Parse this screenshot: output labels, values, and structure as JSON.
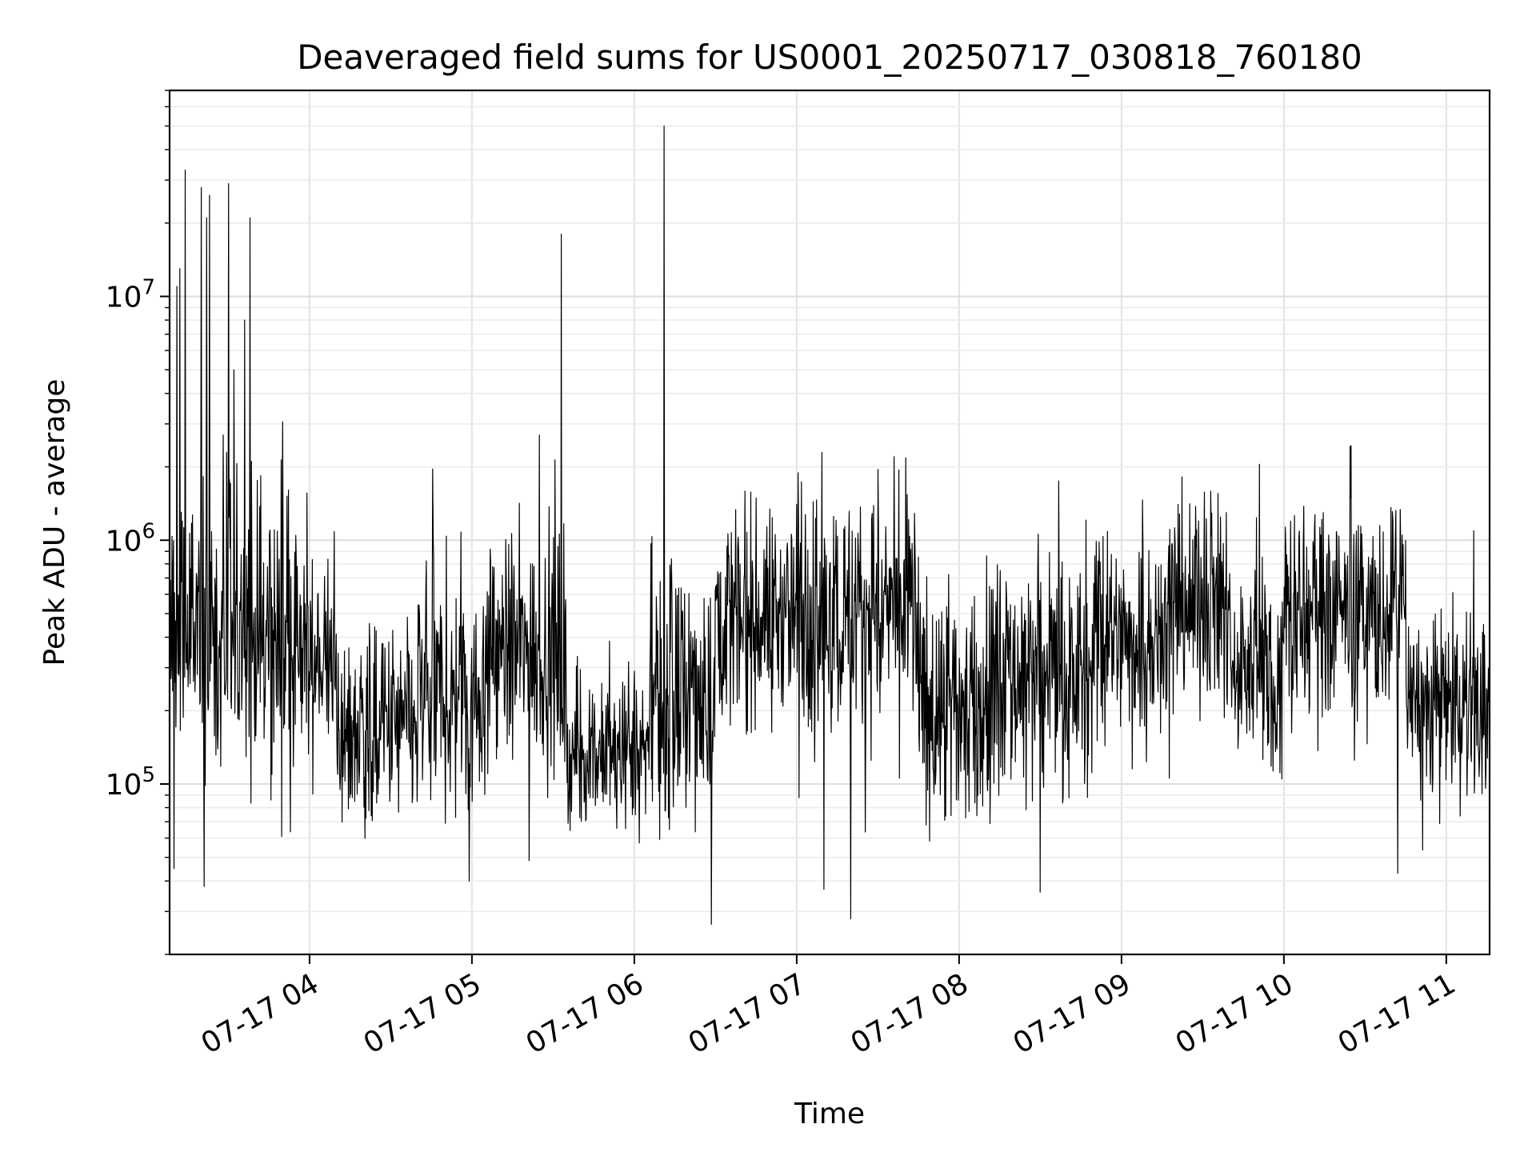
{
  "chart_data": {
    "type": "line",
    "title": "Deaveraged field sums for US0001_20250717_030818_760180",
    "xlabel": "Time",
    "ylabel": "Peak ADU - average",
    "yscale": "log",
    "ylim": [
      20000,
      70000000
    ],
    "xlim": [
      "2025-07-17 03:08:18",
      "2025-07-17 11:16:00"
    ],
    "grid": true,
    "x_ticks": [
      {
        "label": "07-17 04",
        "value": "2025-07-17 04:00"
      },
      {
        "label": "07-17 05",
        "value": "2025-07-17 05:00"
      },
      {
        "label": "07-17 06",
        "value": "2025-07-17 06:00"
      },
      {
        "label": "07-17 07",
        "value": "2025-07-17 07:00"
      },
      {
        "label": "07-17 08",
        "value": "2025-07-17 08:00"
      },
      {
        "label": "07-17 09",
        "value": "2025-07-17 09:00"
      },
      {
        "label": "07-17 10",
        "value": "2025-07-17 10:00"
      },
      {
        "label": "07-17 11",
        "value": "2025-07-17 11:00"
      }
    ],
    "y_ticks": [
      {
        "base": "10",
        "exp": "5",
        "value": 100000
      },
      {
        "base": "10",
        "exp": "6",
        "value": 1000000
      },
      {
        "base": "10",
        "exp": "7",
        "value": 10000000
      }
    ],
    "line_color": "#000000",
    "baseline_segments": [
      {
        "start": "2025-07-17 03:08",
        "end": "2025-07-17 03:55",
        "median": 400000,
        "spread": 0.45
      },
      {
        "start": "2025-07-17 03:55",
        "end": "2025-07-17 04:10",
        "median": 320000,
        "spread": 0.3
      },
      {
        "start": "2025-07-17 04:10",
        "end": "2025-07-17 04:40",
        "median": 170000,
        "spread": 0.3
      },
      {
        "start": "2025-07-17 04:40",
        "end": "2025-07-17 05:05",
        "median": 230000,
        "spread": 0.33
      },
      {
        "start": "2025-07-17 05:05",
        "end": "2025-07-17 05:35",
        "median": 350000,
        "spread": 0.35
      },
      {
        "start": "2025-07-17 05:35",
        "end": "2025-07-17 06:05",
        "median": 130000,
        "spread": 0.2
      },
      {
        "start": "2025-07-17 06:05",
        "end": "2025-07-17 06:30",
        "median": 220000,
        "spread": 0.35
      },
      {
        "start": "2025-07-17 06:30",
        "end": "2025-07-17 07:00",
        "median": 500000,
        "spread": 0.3
      },
      {
        "start": "2025-07-17 07:00",
        "end": "2025-07-17 07:45",
        "median": 500000,
        "spread": 0.35
      },
      {
        "start": "2025-07-17 07:45",
        "end": "2025-07-17 08:10",
        "median": 200000,
        "spread": 0.35
      },
      {
        "start": "2025-07-17 08:10",
        "end": "2025-07-17 08:50",
        "median": 280000,
        "spread": 0.35
      },
      {
        "start": "2025-07-17 08:50",
        "end": "2025-07-17 09:15",
        "median": 400000,
        "spread": 0.3
      },
      {
        "start": "2025-07-17 09:15",
        "end": "2025-07-17 09:40",
        "median": 550000,
        "spread": 0.3
      },
      {
        "start": "2025-07-17 09:40",
        "end": "2025-07-17 10:00",
        "median": 300000,
        "spread": 0.3
      },
      {
        "start": "2025-07-17 10:00",
        "end": "2025-07-17 10:45",
        "median": 500000,
        "spread": 0.33
      },
      {
        "start": "2025-07-17 10:45",
        "end": "2025-07-17 11:16",
        "median": 210000,
        "spread": 0.25
      }
    ],
    "peaks": [
      {
        "t": "2025-07-17 03:14",
        "v": 33000000
      },
      {
        "t": "2025-07-17 03:12",
        "v": 13000000
      },
      {
        "t": "2025-07-17 03:11",
        "v": 11000000
      },
      {
        "t": "2025-07-17 03:20",
        "v": 28000000
      },
      {
        "t": "2025-07-17 03:23",
        "v": 26000000
      },
      {
        "t": "2025-07-17 03:22",
        "v": 21000000
      },
      {
        "t": "2025-07-17 03:30",
        "v": 29000000
      },
      {
        "t": "2025-07-17 03:32",
        "v": 5000000
      },
      {
        "t": "2025-07-17 03:36",
        "v": 8000000
      },
      {
        "t": "2025-07-17 03:38",
        "v": 21000000
      },
      {
        "t": "2025-07-17 05:25",
        "v": 2700000
      },
      {
        "t": "2025-07-17 05:33",
        "v": 18000000
      },
      {
        "t": "2025-07-17 06:11",
        "v": 50000000
      },
      {
        "t": "2025-07-17 07:36",
        "v": 2200000
      },
      {
        "t": "2025-07-17 09:51",
        "v": 2050000
      }
    ],
    "dips": [
      {
        "t": "2025-07-17 03:10",
        "v": 45000
      },
      {
        "t": "2025-07-17 03:21",
        "v": 38000
      },
      {
        "t": "2025-07-17 04:59",
        "v": 40000
      },
      {
        "t": "2025-07-17 07:20",
        "v": 28000
      },
      {
        "t": "2025-07-17 07:10",
        "v": 37000
      },
      {
        "t": "2025-07-17 08:30",
        "v": 36000
      },
      {
        "t": "2025-07-17 10:42",
        "v": 43000
      }
    ]
  }
}
